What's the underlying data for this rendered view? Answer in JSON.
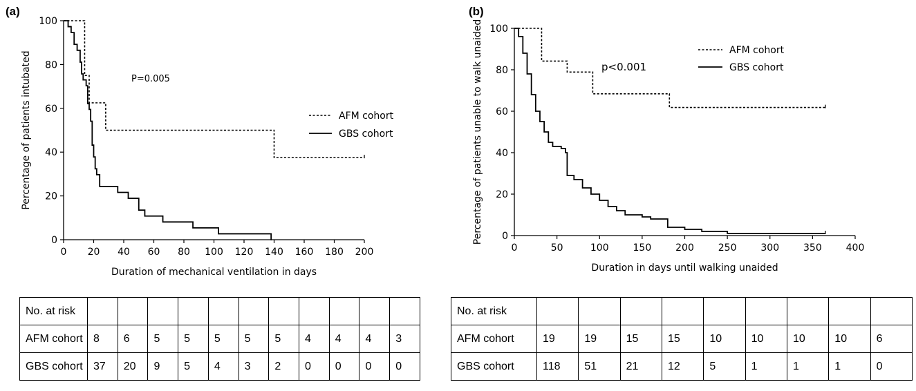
{
  "chart_data": [
    {
      "panel": "(a)",
      "type": "line",
      "step": true,
      "xlabel": "Duration of mechanical ventilation in days",
      "ylabel": "Percentage of patients intubated",
      "xlim": [
        0,
        200
      ],
      "ylim": [
        0,
        100
      ],
      "xticks": [
        "0",
        "20",
        "40",
        "60",
        "80",
        "100",
        "120",
        "140",
        "160",
        "180",
        "200"
      ],
      "yticks": [
        "0",
        "20",
        "40",
        "60",
        "80",
        "100"
      ],
      "annotation": "P=0.005",
      "legend_position": "right",
      "series": [
        {
          "name": "AFM cohort",
          "style": "dashed",
          "x": [
            0,
            14,
            17,
            28,
            140,
            200
          ],
          "y": [
            100,
            75,
            62.5,
            50,
            37.5,
            37.5
          ]
        },
        {
          "name": "GBS cohort",
          "style": "solid",
          "x": [
            0,
            3,
            5,
            7,
            9,
            11,
            12,
            13,
            15,
            16,
            17,
            18,
            19,
            20,
            21,
            22,
            24,
            28,
            36,
            43,
            50,
            54,
            59,
            66,
            86,
            103,
            138
          ],
          "y": [
            100,
            97.3,
            94.6,
            89.2,
            86.5,
            81.1,
            75.7,
            73,
            70.3,
            62.2,
            59.5,
            54.1,
            43.2,
            37.8,
            32.4,
            29.7,
            24.3,
            24.3,
            21.6,
            18.9,
            13.5,
            10.8,
            10.8,
            8.1,
            5.4,
            2.7,
            0
          ]
        }
      ]
    },
    {
      "panel": "(b)",
      "type": "line",
      "step": true,
      "xlabel": "Duration in days until walking unaided",
      "ylabel": "Percentage of patients unable to  walk unaided",
      "xlim": [
        0,
        400
      ],
      "ylim": [
        0,
        100
      ],
      "xticks": [
        "0",
        "50",
        "100",
        "150",
        "200",
        "250",
        "300",
        "350",
        "400"
      ],
      "yticks": [
        "0",
        "20",
        "40",
        "60",
        "80",
        "100"
      ],
      "annotation": "p<0.001",
      "legend_position": "top-right",
      "series": [
        {
          "name": "AFM cohort",
          "style": "dashed",
          "x": [
            0,
            32,
            62,
            92,
            182,
            365
          ],
          "y": [
            100,
            84.2,
            78.9,
            68.4,
            61.8,
            61.8
          ]
        },
        {
          "name": "GBS cohort",
          "style": "solid",
          "x": [
            0,
            5,
            10,
            15,
            20,
            25,
            30,
            35,
            40,
            45,
            50,
            55,
            60,
            62,
            70,
            80,
            90,
            100,
            110,
            120,
            130,
            150,
            160,
            180,
            200,
            220,
            250,
            365
          ],
          "y": [
            100,
            96,
            88,
            78,
            68,
            60,
            55,
            50,
            45,
            43,
            43,
            42,
            40,
            29,
            27,
            23,
            20,
            17,
            14,
            12,
            10,
            9,
            8,
            4,
            3,
            2,
            1,
            1
          ]
        }
      ]
    }
  ],
  "tables": [
    {
      "header_label": "No. at risk",
      "rows": [
        {
          "label": "AFM cohort",
          "values": [
            "8",
            "6",
            "5",
            "5",
            "5",
            "5",
            "5",
            "4",
            "4",
            "4",
            "3"
          ]
        },
        {
          "label": "GBS cohort",
          "values": [
            "37",
            "20",
            "9",
            "5",
            "4",
            "3",
            "2",
            "0",
            "0",
            "0",
            "0"
          ]
        }
      ]
    },
    {
      "header_label": "No. at risk",
      "rows": [
        {
          "label": "AFM cohort",
          "values": [
            "19",
            "19",
            "15",
            "15",
            "10",
            "10",
            "10",
            "10",
            "6"
          ]
        },
        {
          "label": "GBS cohort",
          "values": [
            "118",
            "51",
            "21",
            "12",
            "5",
            "1",
            "1",
            "1",
            "0"
          ]
        }
      ]
    }
  ]
}
